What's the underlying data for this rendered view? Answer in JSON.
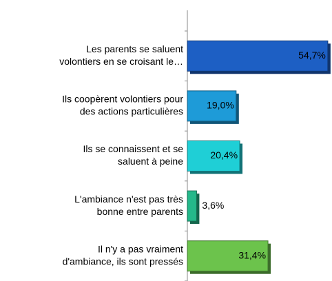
{
  "chart_data": {
    "type": "bar",
    "orientation": "horizontal",
    "categories": [
      [
        "Les parents se saluent",
        "volontiers en se croisant le…"
      ],
      [
        "Ils coopèrent volontiers pour",
        "des actions particulières"
      ],
      [
        "Ils se connaissent et se",
        "saluent à peine"
      ],
      [
        "L'ambiance n'est pas très",
        "bonne entre parents"
      ],
      [
        "Il n'y a pas vraiment",
        "d'ambiance, ils sont pressés"
      ]
    ],
    "values": [
      54.7,
      19.0,
      20.4,
      3.6,
      31.4
    ],
    "value_labels": [
      "54,7%",
      "19,0%",
      "20,4%",
      "3,6%",
      "31,4%"
    ],
    "colors": [
      "#1d5fc4",
      "#1e9bd8",
      "#1fcfd6",
      "#24b88a",
      "#6cc34c"
    ],
    "xlim": [
      0,
      55
    ]
  }
}
